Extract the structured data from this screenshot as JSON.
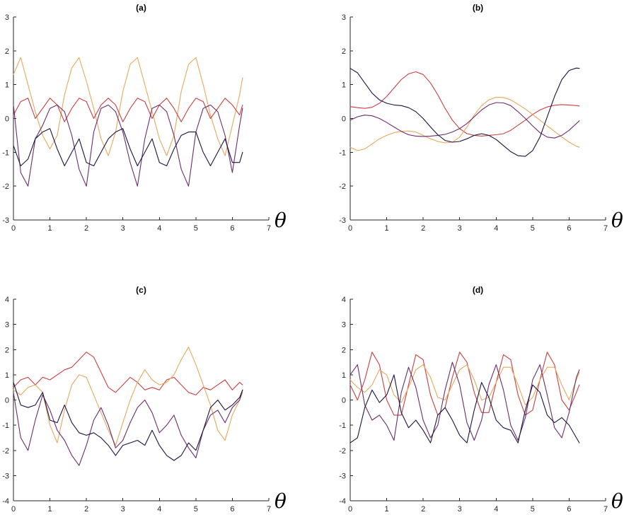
{
  "chart_data": [
    {
      "type": "line",
      "title": "(a)",
      "xlabel": "θ",
      "xlim": [
        0,
        7
      ],
      "ylim": [
        -3,
        3
      ],
      "xticks": [
        0,
        1,
        2,
        3,
        4,
        5,
        6,
        7
      ],
      "yticks": [
        -3,
        -2,
        -1,
        0,
        1,
        2,
        3
      ],
      "grid": false,
      "x": [
        0,
        0.2,
        0.4,
        0.6,
        0.8,
        1.0,
        1.2,
        1.4,
        1.6,
        1.8,
        2.0,
        2.2,
        2.4,
        2.6,
        2.8,
        3.0,
        3.2,
        3.4,
        3.6,
        3.8,
        4.0,
        4.2,
        4.4,
        4.6,
        4.8,
        5.0,
        5.2,
        5.4,
        5.6,
        5.8,
        6.0,
        6.2,
        6.28
      ],
      "series": [
        {
          "color": "#e8a75c",
          "values": [
            1.3,
            1.8,
            1.0,
            0.2,
            -0.5,
            -0.9,
            -0.5,
            0.7,
            1.5,
            1.8,
            1.1,
            0.3,
            -0.6,
            -1.1,
            -0.4,
            0.8,
            1.6,
            1.8,
            1.0,
            0.2,
            -0.6,
            -1.1,
            -0.5,
            0.8,
            1.6,
            1.8,
            1.0,
            0.1,
            -0.6,
            -1.1,
            -0.2,
            0.7,
            1.2
          ]
        },
        {
          "color": "#c8403f",
          "values": [
            0.1,
            0.5,
            0.6,
            0.0,
            0.3,
            0.6,
            0.4,
            -0.1,
            0.3,
            0.6,
            0.5,
            0.0,
            0.4,
            0.6,
            0.4,
            -0.1,
            0.3,
            0.6,
            0.5,
            0.0,
            0.4,
            0.6,
            0.3,
            -0.1,
            0.3,
            0.6,
            0.5,
            0.0,
            0.3,
            0.6,
            0.4,
            0.1,
            0.4
          ]
        },
        {
          "color": "#6b2d6b",
          "values": [
            0.4,
            -1.6,
            -2.0,
            -0.6,
            -0.2,
            0.3,
            0.4,
            0.2,
            -0.5,
            -1.5,
            -2.0,
            -0.4,
            0.3,
            0.4,
            0.2,
            -0.4,
            -1.3,
            -2.0,
            -0.6,
            0.3,
            0.4,
            0.2,
            -0.5,
            -1.5,
            -2.0,
            -0.4,
            0.3,
            0.4,
            0.2,
            -0.5,
            -1.6,
            -0.2,
            0.3
          ]
        },
        {
          "color": "#1b1440",
          "values": [
            -0.8,
            -1.4,
            -1.2,
            -0.6,
            -0.4,
            -0.3,
            -0.9,
            -1.4,
            -1.0,
            -0.6,
            -1.3,
            -1.4,
            -1.0,
            -0.6,
            -0.4,
            -0.3,
            -0.9,
            -1.4,
            -1.0,
            -0.6,
            -1.3,
            -1.4,
            -0.9,
            -0.5,
            -0.4,
            -0.4,
            -1.0,
            -1.4,
            -1.0,
            -0.6,
            -1.3,
            -1.3,
            -1.0
          ]
        }
      ]
    },
    {
      "type": "line",
      "title": "(b)",
      "xlabel": "θ",
      "xlim": [
        0,
        7
      ],
      "ylim": [
        -3,
        3
      ],
      "xticks": [
        0,
        1,
        2,
        3,
        4,
        5,
        6,
        7
      ],
      "yticks": [
        -3,
        -2,
        -1,
        0,
        1,
        2,
        3
      ],
      "grid": false,
      "x": [
        0,
        0.2,
        0.4,
        0.6,
        0.8,
        1.0,
        1.2,
        1.4,
        1.6,
        1.8,
        2.0,
        2.2,
        2.4,
        2.6,
        2.8,
        3.0,
        3.2,
        3.4,
        3.6,
        3.8,
        4.0,
        4.2,
        4.4,
        4.6,
        4.8,
        5.0,
        5.2,
        5.4,
        5.6,
        5.8,
        6.0,
        6.2,
        6.28
      ],
      "series": [
        {
          "color": "#c8403f",
          "values": [
            0.35,
            0.32,
            0.3,
            0.33,
            0.45,
            0.65,
            0.9,
            1.15,
            1.32,
            1.38,
            1.3,
            1.05,
            0.7,
            0.3,
            -0.05,
            -0.3,
            -0.45,
            -0.5,
            -0.52,
            -0.5,
            -0.48,
            -0.45,
            -0.35,
            -0.2,
            -0.05,
            0.12,
            0.25,
            0.34,
            0.39,
            0.41,
            0.4,
            0.38,
            0.37
          ]
        },
        {
          "color": "#e8a75c",
          "values": [
            -0.85,
            -0.95,
            -0.9,
            -0.75,
            -0.6,
            -0.5,
            -0.42,
            -0.38,
            -0.37,
            -0.4,
            -0.5,
            -0.6,
            -0.68,
            -0.72,
            -0.7,
            -0.55,
            -0.25,
            0.1,
            0.38,
            0.55,
            0.63,
            0.62,
            0.55,
            0.42,
            0.28,
            0.12,
            -0.05,
            -0.22,
            -0.38,
            -0.55,
            -0.7,
            -0.82,
            -0.85
          ]
        },
        {
          "color": "#6b2d6b",
          "values": [
            -0.05,
            0.05,
            0.1,
            0.08,
            0.0,
            -0.12,
            -0.25,
            -0.38,
            -0.48,
            -0.52,
            -0.53,
            -0.52,
            -0.5,
            -0.47,
            -0.4,
            -0.3,
            -0.15,
            0.05,
            0.25,
            0.4,
            0.47,
            0.46,
            0.38,
            0.2,
            0.0,
            -0.22,
            -0.42,
            -0.55,
            -0.58,
            -0.5,
            -0.35,
            -0.15,
            -0.07
          ]
        },
        {
          "color": "#1b1440",
          "values": [
            1.48,
            1.35,
            1.05,
            0.75,
            0.55,
            0.45,
            0.4,
            0.38,
            0.32,
            0.2,
            0.0,
            -0.25,
            -0.48,
            -0.65,
            -0.7,
            -0.68,
            -0.6,
            -0.5,
            -0.45,
            -0.5,
            -0.62,
            -0.8,
            -0.98,
            -1.1,
            -1.12,
            -0.95,
            -0.55,
            0.05,
            0.65,
            1.15,
            1.42,
            1.49,
            1.48
          ]
        }
      ]
    },
    {
      "type": "line",
      "title": "(c)",
      "xlabel": "θ",
      "xlim": [
        0,
        7
      ],
      "ylim": [
        -4,
        4
      ],
      "xticks": [
        0,
        1,
        2,
        3,
        4,
        5,
        6,
        7
      ],
      "yticks": [
        -4,
        -3,
        -2,
        -1,
        0,
        1,
        2,
        3,
        4
      ],
      "grid": false,
      "x": [
        0,
        0.2,
        0.4,
        0.6,
        0.8,
        1.0,
        1.2,
        1.4,
        1.6,
        1.8,
        2.0,
        2.2,
        2.4,
        2.6,
        2.8,
        3.0,
        3.2,
        3.4,
        3.6,
        3.8,
        4.0,
        4.2,
        4.4,
        4.6,
        4.8,
        5.0,
        5.2,
        5.4,
        5.6,
        5.8,
        6.0,
        6.2,
        6.28
      ],
      "series": [
        {
          "color": "#c8403f",
          "values": [
            0.5,
            0.8,
            0.9,
            0.6,
            0.9,
            0.8,
            1.0,
            1.2,
            1.3,
            1.6,
            1.9,
            1.7,
            1.1,
            0.5,
            0.3,
            0.6,
            0.9,
            0.7,
            0.4,
            0.5,
            0.4,
            0.8,
            0.9,
            0.6,
            0.3,
            0.2,
            0.5,
            0.4,
            0.6,
            0.8,
            0.4,
            0.7,
            0.6
          ]
        },
        {
          "color": "#e8a75c",
          "values": [
            0.4,
            0.2,
            0.5,
            0.6,
            0.3,
            -1.0,
            -1.7,
            -0.4,
            0.6,
            1.0,
            0.9,
            0.2,
            -0.5,
            -1.2,
            -1.8,
            -0.9,
            0.0,
            0.7,
            1.2,
            0.8,
            0.6,
            0.7,
            1.0,
            1.6,
            2.1,
            1.4,
            0.6,
            -0.2,
            -1.2,
            -1.6,
            -0.6,
            0.0,
            0.3
          ]
        },
        {
          "color": "#6b2d6b",
          "values": [
            0.3,
            -1.5,
            -2.0,
            -0.8,
            0.2,
            -0.4,
            -1.2,
            -1.6,
            -2.2,
            -2.6,
            -1.8,
            -0.8,
            -0.3,
            -1.0,
            -1.9,
            -1.6,
            -0.9,
            -0.3,
            0.0,
            -0.5,
            -1.3,
            -1.0,
            -0.6,
            -1.4,
            -1.9,
            -2.3,
            -1.2,
            -0.6,
            -0.4,
            -0.9,
            -0.3,
            0.0,
            0.4
          ]
        },
        {
          "color": "#1b1440",
          "values": [
            0.7,
            -0.2,
            -0.3,
            -0.2,
            0.3,
            -0.8,
            -0.9,
            -0.2,
            -0.9,
            -1.3,
            -1.4,
            -1.3,
            -1.5,
            -1.8,
            -2.2,
            -1.8,
            -1.7,
            -1.6,
            -1.8,
            -1.2,
            -1.8,
            -2.2,
            -2.4,
            -2.2,
            -1.7,
            -2.0,
            -1.2,
            -0.3,
            0.0,
            -0.4,
            -0.2,
            0.1,
            0.4
          ]
        }
      ]
    },
    {
      "type": "line",
      "title": "(d)",
      "xlabel": "θ",
      "xlim": [
        0,
        7
      ],
      "ylim": [
        -4,
        4
      ],
      "xticks": [
        0,
        1,
        2,
        3,
        4,
        5,
        6,
        7
      ],
      "yticks": [
        -4,
        -3,
        -2,
        -1,
        0,
        1,
        2,
        3,
        4
      ],
      "grid": false,
      "x": [
        0,
        0.2,
        0.4,
        0.6,
        0.8,
        1.0,
        1.2,
        1.4,
        1.6,
        1.8,
        2.0,
        2.2,
        2.4,
        2.6,
        2.8,
        3.0,
        3.2,
        3.4,
        3.6,
        3.8,
        4.0,
        4.2,
        4.4,
        4.6,
        4.8,
        5.0,
        5.2,
        5.4,
        5.6,
        5.8,
        6.0,
        6.2,
        6.28
      ],
      "series": [
        {
          "color": "#c8403f",
          "values": [
            0.6,
            0.0,
            0.8,
            1.9,
            1.4,
            0.0,
            -0.6,
            -0.6,
            0.6,
            1.8,
            1.6,
            0.2,
            -0.6,
            -0.3,
            0.9,
            1.9,
            1.5,
            0.3,
            -0.5,
            -0.5,
            0.7,
            1.8,
            1.6,
            0.2,
            -0.6,
            -0.4,
            0.8,
            1.9,
            1.4,
            0.0,
            -0.4,
            0.3,
            0.6
          ]
        },
        {
          "color": "#e8a75c",
          "values": [
            0.8,
            0.5,
            0.3,
            0.6,
            1.2,
            1.0,
            0.2,
            -0.1,
            0.5,
            1.2,
            1.4,
            0.9,
            0.1,
            0.0,
            0.6,
            1.2,
            1.4,
            0.8,
            0.0,
            0.1,
            0.7,
            1.3,
            1.3,
            0.6,
            -0.2,
            0.1,
            0.8,
            1.3,
            1.3,
            0.6,
            0.0,
            0.8,
            1.1
          ]
        },
        {
          "color": "#6b2d6b",
          "values": [
            1.0,
            1.4,
            -0.2,
            -0.8,
            -0.6,
            -1.0,
            -1.6,
            0.3,
            1.3,
            0.5,
            -0.8,
            -1.5,
            -1.0,
            0.4,
            1.5,
            0.6,
            -0.9,
            -1.6,
            -0.8,
            0.6,
            1.4,
            0.4,
            -1.0,
            -1.6,
            -0.7,
            0.8,
            1.4,
            0.2,
            -1.1,
            -1.5,
            -0.5,
            0.9,
            1.2
          ]
        },
        {
          "color": "#1b1440",
          "values": [
            -1.7,
            -1.5,
            -0.3,
            0.4,
            -0.1,
            0.2,
            1.0,
            -0.5,
            -1.1,
            -0.8,
            -1.2,
            -1.7,
            -0.6,
            -0.3,
            -0.8,
            -1.4,
            -1.7,
            -0.4,
            0.7,
            0.1,
            -0.8,
            -1.1,
            -1.2,
            -1.7,
            -0.4,
            0.6,
            0.3,
            -0.6,
            -0.9,
            -0.7,
            -1.0,
            -1.5,
            -1.7
          ]
        }
      ]
    }
  ]
}
